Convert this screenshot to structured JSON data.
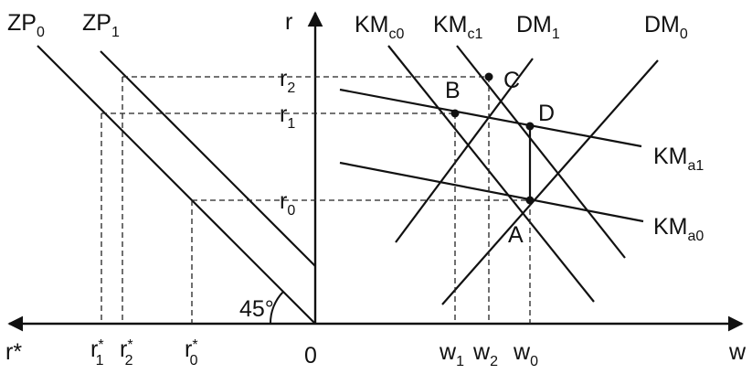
{
  "axes": {
    "vertical": "r",
    "horizontal_right": "w",
    "horizontal_left": "r*",
    "origin": "0"
  },
  "angle_label": "45°",
  "curves": {
    "zp0": {
      "base": "ZP",
      "sub": "0"
    },
    "zp1": {
      "base": "ZP",
      "sub": "1"
    },
    "kmc0": {
      "base": "KM",
      "sub": "c0"
    },
    "kmc1": {
      "base": "KM",
      "sub": "c1"
    },
    "dm1": {
      "base": "DM",
      "sub": "1"
    },
    "dm0": {
      "base": "DM",
      "sub": "0"
    },
    "kma1": {
      "base": "KM",
      "sub": "a1"
    },
    "kma0": {
      "base": "KM",
      "sub": "a0"
    }
  },
  "r_levels": {
    "r2": {
      "base": "r",
      "sub": "2"
    },
    "r1": {
      "base": "r",
      "sub": "1"
    },
    "r0": {
      "base": "r",
      "sub": "0"
    }
  },
  "w_levels": {
    "w1": {
      "base": "w",
      "sub": "1"
    },
    "w2": {
      "base": "w",
      "sub": "2"
    },
    "w0": {
      "base": "w",
      "sub": "0"
    }
  },
  "rstar_levels": {
    "r1": {
      "base": "r",
      "sup": "*",
      "sub": "1"
    },
    "r2": {
      "base": "r",
      "sup": "*",
      "sub": "2"
    },
    "r0": {
      "base": "r",
      "sup": "*",
      "sub": "0"
    }
  },
  "points": {
    "a": "A",
    "b": "B",
    "c": "C",
    "d": "D"
  }
}
